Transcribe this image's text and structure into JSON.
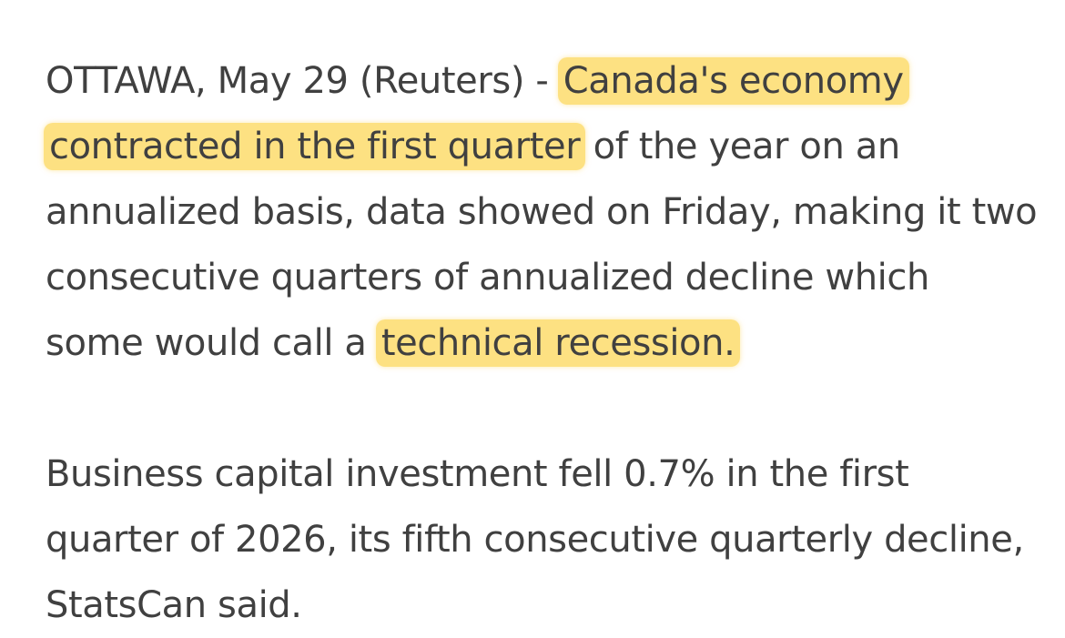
{
  "article": {
    "paragraphs": [
      {
        "segments": [
          {
            "text": "OTTAWA, May 29 (Reuters) - ",
            "highlight": false
          },
          {
            "text": "Canada's economy contracted in the first quarter",
            "highlight": true
          },
          {
            "text": " of the year on an annualized basis, data showed on Friday, making it two consecutive quarters of annualized decline which some would call a ",
            "highlight": false
          },
          {
            "text": "technical recession.",
            "highlight": true
          }
        ]
      },
      {
        "segments": [
          {
            "text": "Business capital investment fell 0.7% in the first quarter of 2026, its fifth consecutive quarterly decline, StatsCan said.",
            "highlight": false
          }
        ]
      }
    ]
  },
  "colors": {
    "text": "#404040",
    "highlight": "#fde182",
    "background": "#ffffff"
  }
}
